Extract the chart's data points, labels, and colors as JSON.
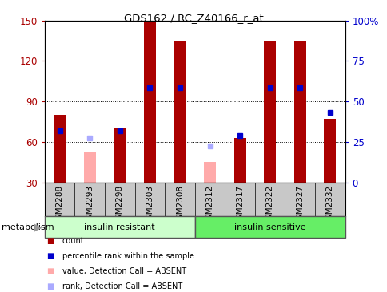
{
  "title": "GDS162 / RC_Z40166_r_at",
  "samples": [
    "GSM2288",
    "GSM2293",
    "GSM2298",
    "GSM2303",
    "GSM2308",
    "GSM2312",
    "GSM2317",
    "GSM2322",
    "GSM2327",
    "GSM2332"
  ],
  "bar_values": [
    80,
    null,
    70,
    150,
    135,
    null,
    63,
    135,
    135,
    77
  ],
  "bar_color": "#AA0000",
  "absent_bar_values": [
    null,
    53,
    null,
    null,
    null,
    45,
    null,
    null,
    null,
    null
  ],
  "absent_bar_color": "#FFAAAA",
  "rank_values": [
    68,
    null,
    68,
    100,
    100,
    null,
    65,
    100,
    100,
    82
  ],
  "rank_color": "#0000CC",
  "absent_rank_values": [
    null,
    63,
    null,
    null,
    null,
    57,
    null,
    null,
    null,
    null
  ],
  "absent_rank_color": "#AAAAFF",
  "left_ylim": [
    30,
    150
  ],
  "left_yticks": [
    30,
    60,
    90,
    120,
    150
  ],
  "right_ylim": [
    0,
    100
  ],
  "right_yticks": [
    0,
    25,
    50,
    75,
    100
  ],
  "right_yticklabels": [
    "0",
    "25",
    "50",
    "75",
    "100%"
  ],
  "gridlines": [
    60,
    90,
    120
  ],
  "group1_label": "insulin resistant",
  "group2_label": "insulin sensitive",
  "group1_count": 5,
  "group2_count": 5,
  "group1_color": "#CCFFCC",
  "group2_color": "#66EE66",
  "metabolism_label": "metabolism",
  "legend_items": [
    {
      "label": "count",
      "color": "#AA0000"
    },
    {
      "label": "percentile rank within the sample",
      "color": "#0000CC"
    },
    {
      "label": "value, Detection Call = ABSENT",
      "color": "#FFAAAA"
    },
    {
      "label": "rank, Detection Call = ABSENT",
      "color": "#AAAAFF"
    }
  ],
  "bar_width": 0.4,
  "rank_marker_size": 5,
  "xtick_bg_color": "#C8C8C8"
}
